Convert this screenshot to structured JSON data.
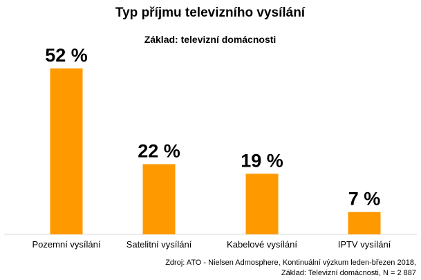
{
  "chart_data": {
    "type": "bar",
    "title": "Typ příjmu televizního vysílání",
    "subtitle": "Základ: televizní domácnosti",
    "categories": [
      "Pozemní vysílání",
      "Satelitní vysílání",
      "Kabelové vysílání",
      "IPTV vysílání"
    ],
    "values": [
      52,
      22,
      19,
      7
    ],
    "value_labels": [
      "52 %",
      "22 %",
      "19 %",
      "7 %"
    ],
    "ylim": [
      0,
      60
    ],
    "grid": false,
    "legend": "none",
    "bar_color": "#FF9900",
    "axis_color": "#D9D9D9"
  },
  "footer": {
    "source_line1": "Zdroj: ATO - Nielsen Admosphere, Kontinuální výzkum leden-březen 2018,",
    "source_line2": "Základ: Televizní domácnosti, N = 2 887"
  }
}
